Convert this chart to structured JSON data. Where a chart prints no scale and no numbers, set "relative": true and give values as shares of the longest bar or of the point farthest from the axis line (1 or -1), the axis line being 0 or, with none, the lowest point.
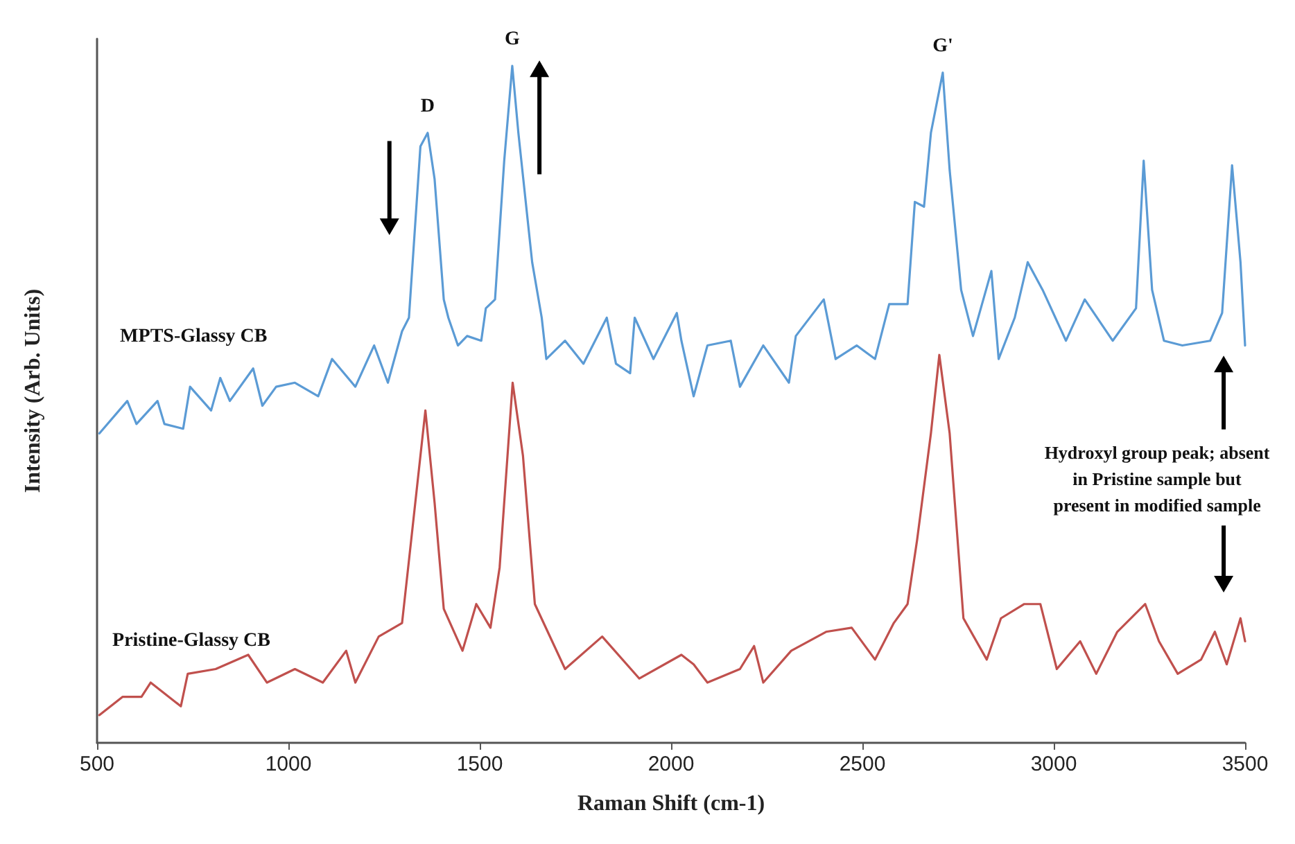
{
  "chart_data": {
    "type": "line",
    "relative": true,
    "xlabel": "Raman Shift (cm-1)",
    "ylabel": "Intensity (Arb. Units)",
    "xlim": [
      500,
      3500
    ],
    "xticks": [
      500,
      1000,
      1500,
      2000,
      2500,
      3000,
      3500
    ],
    "grid": false,
    "legend": false,
    "marker": "none",
    "line_style": "solid",
    "series": [
      {
        "name": "MPTS-Glassy CB",
        "color": "#5b9bd5",
        "x": [
          506,
          579,
          603,
          658,
          676,
          725,
          743,
          798,
          822,
          847,
          908,
          932,
          968,
          1017,
          1078,
          1114,
          1175,
          1224,
          1260,
          1297,
          1315,
          1345,
          1364,
          1382,
          1406,
          1418,
          1443,
          1467,
          1504,
          1516,
          1540,
          1564,
          1585,
          1601,
          1637,
          1662,
          1674,
          1723,
          1771,
          1832,
          1856,
          1893,
          1905,
          1954,
          2015,
          2027,
          2059,
          2095,
          2156,
          2180,
          2241,
          2308,
          2326,
          2399,
          2430,
          2485,
          2533,
          2570,
          2618,
          2637,
          2661,
          2679,
          2710,
          2728,
          2758,
          2789,
          2837,
          2856,
          2898,
          2932,
          2971,
          3032,
          3081,
          3154,
          3215,
          3235,
          3257,
          3288,
          3336,
          3409,
          3440,
          3466,
          3488,
          3500
        ],
        "values": [
          0.457,
          0.505,
          0.471,
          0.505,
          0.471,
          0.464,
          0.526,
          0.491,
          0.539,
          0.505,
          0.553,
          0.498,
          0.526,
          0.532,
          0.512,
          0.567,
          0.526,
          0.587,
          0.532,
          0.608,
          0.628,
          0.881,
          0.901,
          0.833,
          0.655,
          0.628,
          0.587,
          0.601,
          0.594,
          0.642,
          0.655,
          0.86,
          1.0,
          0.901,
          0.71,
          0.628,
          0.567,
          0.594,
          0.56,
          0.628,
          0.56,
          0.546,
          0.628,
          0.567,
          0.635,
          0.594,
          0.512,
          0.587,
          0.594,
          0.526,
          0.587,
          0.532,
          0.601,
          0.655,
          0.567,
          0.587,
          0.567,
          0.648,
          0.648,
          0.799,
          0.792,
          0.901,
          0.99,
          0.846,
          0.669,
          0.601,
          0.697,
          0.567,
          0.628,
          0.71,
          0.669,
          0.594,
          0.655,
          0.594,
          0.642,
          0.86,
          0.669,
          0.594,
          0.587,
          0.594,
          0.635,
          0.853,
          0.71,
          0.587
        ]
      },
      {
        "name": "Pristine-Glassy CB",
        "color": "#c0504d",
        "x": [
          506,
          567,
          616,
          640,
          719,
          737,
          810,
          895,
          944,
          1017,
          1090,
          1151,
          1175,
          1236,
          1297,
          1321,
          1358,
          1382,
          1406,
          1455,
          1491,
          1528,
          1552,
          1586,
          1613,
          1644,
          1723,
          1820,
          1917,
          2027,
          2059,
          2095,
          2180,
          2217,
          2241,
          2314,
          2405,
          2472,
          2533,
          2582,
          2618,
          2643,
          2679,
          2701,
          2728,
          2764,
          2825,
          2862,
          2923,
          2965,
          3008,
          3069,
          3111,
          3166,
          3239,
          3275,
          3324,
          3385,
          3421,
          3452,
          3488,
          3500
        ],
        "values": [
          0.041,
          0.068,
          0.068,
          0.089,
          0.054,
          0.102,
          0.109,
          0.13,
          0.089,
          0.109,
          0.089,
          0.136,
          0.089,
          0.157,
          0.177,
          0.3,
          0.491,
          0.355,
          0.198,
          0.136,
          0.205,
          0.17,
          0.259,
          0.532,
          0.424,
          0.205,
          0.109,
          0.157,
          0.095,
          0.13,
          0.116,
          0.089,
          0.109,
          0.143,
          0.089,
          0.136,
          0.164,
          0.17,
          0.123,
          0.177,
          0.205,
          0.3,
          0.457,
          0.573,
          0.457,
          0.184,
          0.123,
          0.184,
          0.205,
          0.205,
          0.109,
          0.15,
          0.102,
          0.164,
          0.205,
          0.15,
          0.102,
          0.123,
          0.164,
          0.116,
          0.184,
          0.15
        ]
      }
    ],
    "annotations": [
      {
        "text": "D",
        "x": 1364,
        "y": 0.901
      },
      {
        "text": "G",
        "x": 1585,
        "y": 1.0
      },
      {
        "text": "G'",
        "x": 2710,
        "y": 0.99
      },
      "Hydroxyl group peak; absent in Pristine sample but present in modified sample"
    ]
  }
}
